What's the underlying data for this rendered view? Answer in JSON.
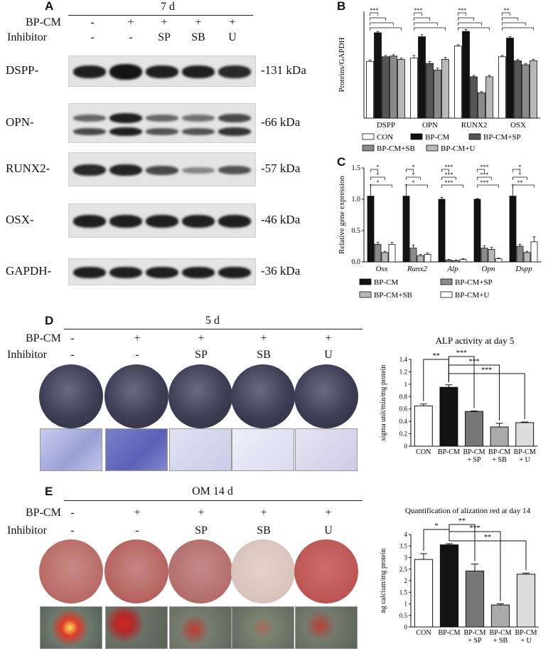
{
  "figure": {
    "panels": {
      "A": {
        "label": "A",
        "timepoint": "7 d",
        "row_labels": [
          "BP-CM",
          "Inhibitor"
        ],
        "bpcm": [
          "-",
          "+",
          "+",
          "+",
          "+"
        ],
        "inhibitor": [
          "-",
          "-",
          "SP",
          "SB",
          "U"
        ],
        "blots": [
          {
            "protein": "DSPP-",
            "size": "-131 kDa"
          },
          {
            "protein": "OPN-",
            "size": "-66 kDa"
          },
          {
            "protein": "RUNX2-",
            "size": "-57 kDa"
          },
          {
            "protein": "OSX-",
            "size": "-46 kDa"
          },
          {
            "protein": "GAPDH-",
            "size": "-36 kDa"
          }
        ]
      },
      "B": {
        "label": "B"
      },
      "C": {
        "label": "C"
      },
      "D": {
        "label": "D",
        "timepoint": "5 d",
        "row_labels": [
          "BP-CM",
          "Inhibitor"
        ],
        "bpcm": [
          "-",
          "+",
          "+",
          "+",
          "+"
        ],
        "inhibitor": [
          "-",
          "-",
          "SP",
          "SB",
          "U"
        ]
      },
      "E": {
        "label": "E",
        "timepoint": "OM 14 d",
        "row_labels": [
          "BP-CM",
          "Inhibitor"
        ],
        "bpcm": [
          "-",
          "+",
          "+",
          "+",
          "+"
        ],
        "inhibitor": [
          "-",
          "-",
          "SP",
          "SB",
          "U"
        ]
      }
    }
  },
  "chart_data": [
    {
      "id": "B",
      "type": "bar",
      "ylabel": "Proteins/GAPDH",
      "ylim": [
        0,
        1.6
      ],
      "categories": [
        "DSPP",
        "OPN",
        "RUNX2",
        "OSX"
      ],
      "series": [
        {
          "name": "CON",
          "color": "#ffffff",
          "values": [
            0.85,
            0.9,
            1.08,
            0.92
          ]
        },
        {
          "name": "BP-CM",
          "color": "#111111",
          "values": [
            1.28,
            1.22,
            1.3,
            1.2
          ]
        },
        {
          "name": "BP-CM+SP",
          "color": "#555555",
          "values": [
            0.92,
            0.82,
            0.62,
            0.86
          ]
        },
        {
          "name": "BP-CM+SB",
          "color": "#8a8a8a",
          "values": [
            0.93,
            0.72,
            0.38,
            0.8
          ]
        },
        {
          "name": "BP-CM+U",
          "color": "#b8b8b8",
          "values": [
            0.88,
            0.88,
            0.62,
            0.86
          ]
        }
      ],
      "errors": [
        [
          0.02,
          0.04,
          0.02,
          0.02
        ],
        [
          0.02,
          0.03,
          0.03,
          0.02
        ],
        [
          0.02,
          0.03,
          0.02,
          0.02
        ],
        [
          0.02,
          0.03,
          0.02,
          0.02
        ],
        [
          0.02,
          0.03,
          0.02,
          0.02
        ]
      ],
      "significance": [
        "***",
        "***",
        "***",
        "**"
      ],
      "legend": "bottom"
    },
    {
      "id": "C",
      "type": "bar",
      "ylabel": "Relative gene expression",
      "ylim": [
        0,
        1.5
      ],
      "yticks": [
        "0.0",
        "0.5",
        "1.0",
        "1.5"
      ],
      "categories": [
        "Osx",
        "Runx2",
        "Alp",
        "Opn",
        "Dspp"
      ],
      "series": [
        {
          "name": "BP-CM",
          "color": "#111111",
          "values": [
            1.05,
            1.05,
            1.0,
            1.0,
            1.05
          ]
        },
        {
          "name": "BP-CM+SP",
          "color": "#8a8a8a",
          "values": [
            0.28,
            0.22,
            0.03,
            0.22,
            0.25
          ]
        },
        {
          "name": "BP-CM+SB",
          "color": "#b8b8b8",
          "values": [
            0.15,
            0.1,
            0.02,
            0.2,
            0.15
          ]
        },
        {
          "name": "BP-CM+U",
          "color": "#ffffff",
          "values": [
            0.28,
            0.12,
            0.04,
            0.05,
            0.32
          ]
        }
      ],
      "errors": [
        [
          0.18,
          0.18,
          0.03,
          0.01,
          0.18
        ],
        [
          0.03,
          0.05,
          0.01,
          0.04,
          0.03
        ],
        [
          0.02,
          0.02,
          0.01,
          0.03,
          0.02
        ],
        [
          0.03,
          0.02,
          0.01,
          0.01,
          0.08
        ]
      ],
      "significance": [
        [
          "*",
          "*",
          "*"
        ],
        [
          "*",
          "*",
          "*"
        ],
        [
          "***",
          "***",
          "***"
        ],
        [
          "***",
          "***",
          "***"
        ],
        [
          "*",
          "*",
          "**"
        ]
      ],
      "legend": "bottom"
    },
    {
      "id": "D",
      "type": "bar",
      "title": "ALP activity at day 5",
      "ylabel": "sigma unit/min/mg protein",
      "ylim": [
        0,
        1.4
      ],
      "yticks": [
        "0",
        "0.2",
        "0.4",
        "0.6",
        "0.8",
        "1",
        "1.2",
        "1.4"
      ],
      "categories": [
        "CON",
        "BP-CM",
        "BP-CM|+ SP",
        "BP-CM|+ SB",
        "BP-CM|+ U"
      ],
      "values": [
        0.65,
        0.95,
        0.56,
        0.31,
        0.38
      ],
      "errors": [
        0.03,
        0.04,
        0.01,
        0.06,
        0.01
      ],
      "colors": [
        "#ffffff",
        "#111111",
        "#777777",
        "#aaaaaa",
        "#dddddd"
      ],
      "brackets": [
        {
          "from": 0,
          "to": 1,
          "label": "**"
        },
        {
          "from": 1,
          "to": 2,
          "label": "***"
        },
        {
          "from": 1,
          "to": 3,
          "label": "***"
        },
        {
          "from": 1,
          "to": 4,
          "label": "***"
        }
      ]
    },
    {
      "id": "E",
      "type": "bar",
      "title": "Quantification of alization red at day 14",
      "ylabel": "ng calcium/mg protein",
      "ylim": [
        0,
        4
      ],
      "yticks": [
        "0",
        "0.5",
        "1",
        "1.5",
        "2",
        "2.5",
        "3",
        "3.5",
        "4"
      ],
      "categories": [
        "CON",
        "BP-CM",
        "BP-CM|+ SP",
        "BP-CM|+ SB",
        "BP-CM|+ U"
      ],
      "values": [
        2.92,
        3.55,
        2.42,
        0.95,
        2.28
      ],
      "errors": [
        0.25,
        0.05,
        0.3,
        0.05,
        0.05
      ],
      "colors": [
        "#ffffff",
        "#111111",
        "#777777",
        "#aaaaaa",
        "#dddddd"
      ],
      "brackets": [
        {
          "from": 0,
          "to": 1,
          "label": "*"
        },
        {
          "from": 1,
          "to": 2,
          "label": "**"
        },
        {
          "from": 1,
          "to": 3,
          "label": "***"
        },
        {
          "from": 1,
          "to": 4,
          "label": "**"
        }
      ]
    }
  ]
}
